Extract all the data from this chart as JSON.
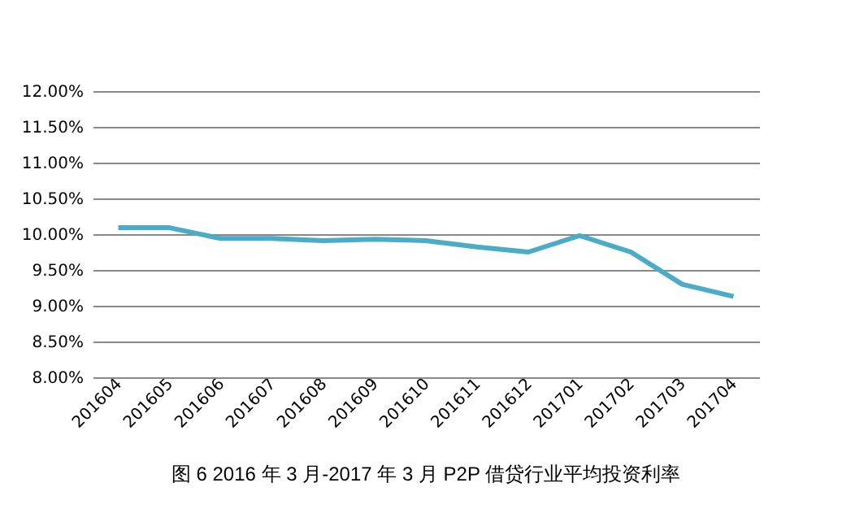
{
  "chart_data": {
    "type": "line",
    "categories": [
      "201604",
      "201605",
      "201606",
      "201607",
      "201608",
      "201609",
      "201610",
      "201611",
      "201612",
      "201701",
      "201702",
      "201703",
      "201704"
    ],
    "series": [
      {
        "color": "#4bacc6",
        "values": [
          10.09,
          10.09,
          9.94,
          9.94,
          9.91,
          9.93,
          9.91,
          9.82,
          9.75,
          9.98,
          9.75,
          9.3,
          9.13
        ]
      }
    ],
    "ylim": [
      8,
      12
    ],
    "yticks": [
      {
        "value": 8,
        "label": "8.00%"
      },
      {
        "value": 8.5,
        "label": "8.50%"
      },
      {
        "value": 9,
        "label": "9.00%"
      },
      {
        "value": 9.5,
        "label": "9.50%"
      },
      {
        "value": 10,
        "label": "10.00%"
      },
      {
        "value": 10.5,
        "label": "10.50%"
      },
      {
        "value": 11,
        "label": "11.00%"
      },
      {
        "value": 11.5,
        "label": "11.50%"
      },
      {
        "value": 12,
        "label": "12.00%"
      }
    ],
    "grid": "y",
    "marker": "none",
    "line_style": "solid",
    "annotations": [
      "图 6  2016 年 3 月-2017 年 3 月 P2P 借贷行业平均投资利率"
    ]
  }
}
